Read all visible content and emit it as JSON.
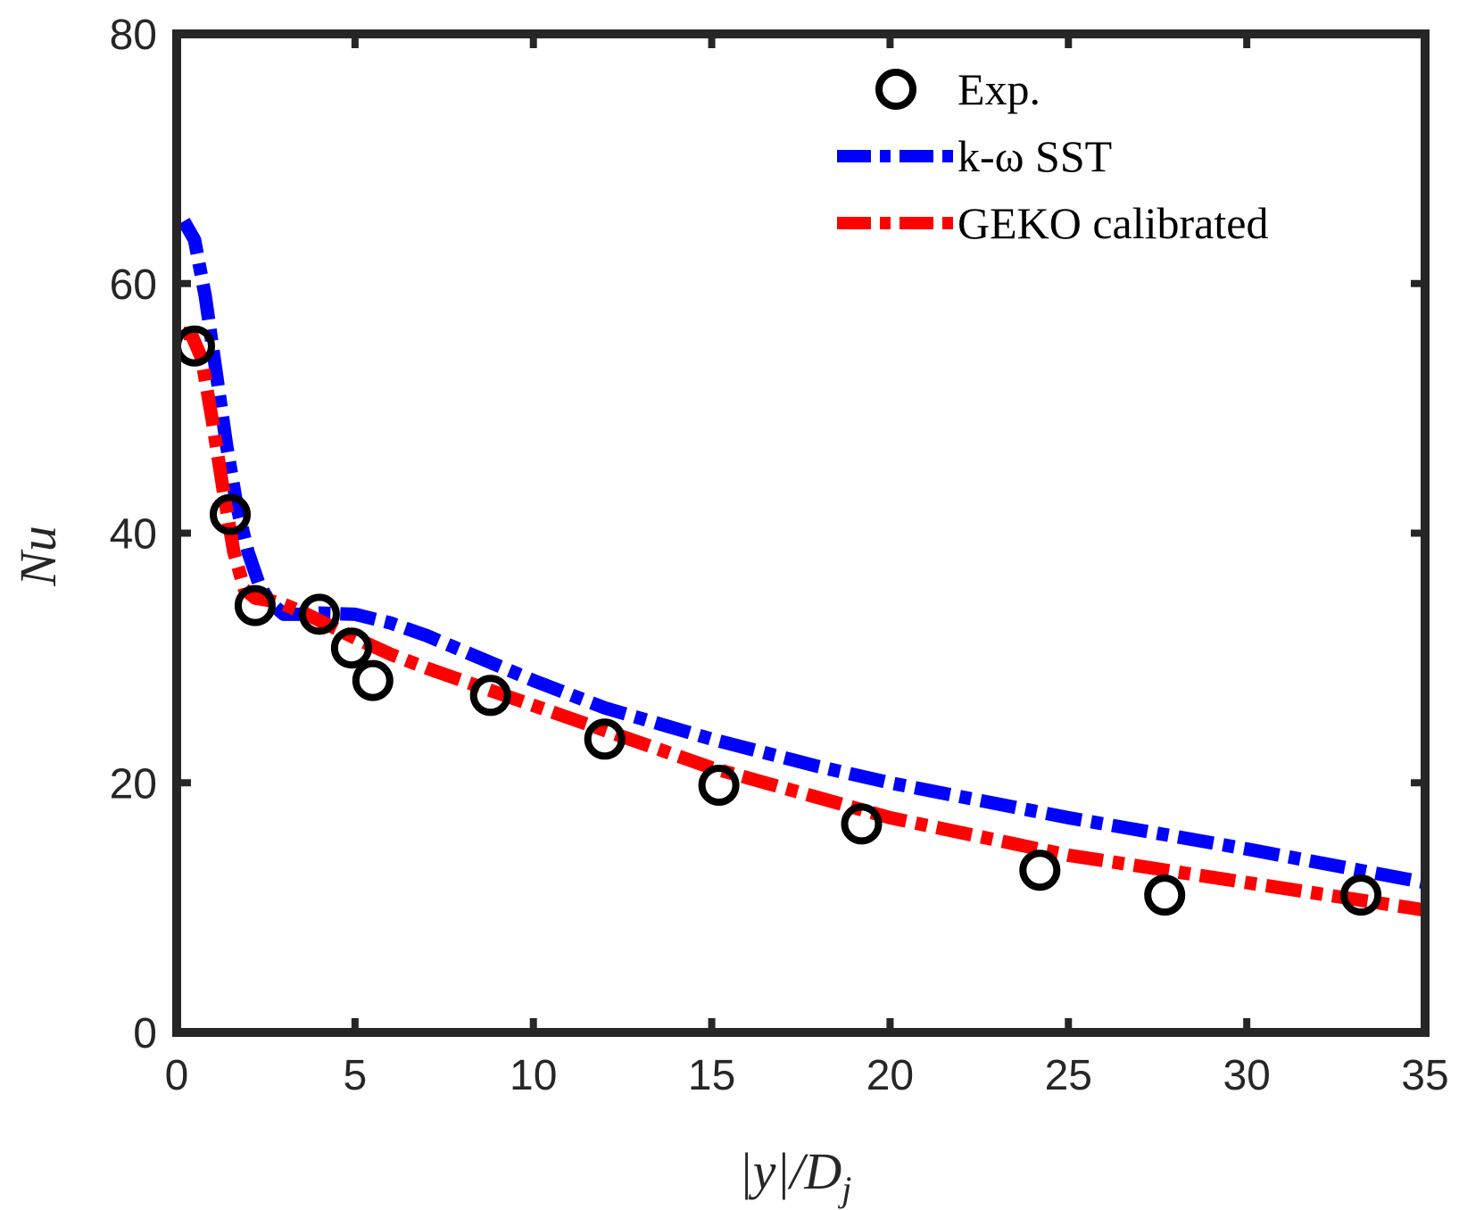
{
  "chart_data": {
    "type": "line",
    "title": "",
    "xlabel": "|y|/D_j",
    "ylabel": "Nu",
    "xlim": [
      0,
      35
    ],
    "ylim": [
      0,
      80
    ],
    "xticks": [
      0,
      5,
      10,
      15,
      20,
      25,
      30,
      35
    ],
    "yticks": [
      0,
      20,
      40,
      60,
      80
    ],
    "xtick_labels": [
      "0",
      "5",
      "10",
      "15",
      "20",
      "25",
      "30",
      "35"
    ],
    "ytick_labels": [
      "0",
      "20",
      "40",
      "60",
      "80"
    ],
    "grid": false,
    "legend_position": "top-right",
    "series": [
      {
        "name": "Exp.",
        "style": "markers",
        "marker": "circle",
        "color": "#000000",
        "x": [
          0.5,
          1.5,
          2.2,
          4.0,
          4.9,
          5.5,
          8.8,
          12.0,
          15.2,
          19.2,
          24.2,
          27.7,
          33.2
        ],
        "y": [
          55.0,
          41.5,
          34.2,
          33.5,
          30.8,
          28.2,
          27.0,
          23.5,
          19.8,
          16.7,
          13.0,
          11.0,
          11.0
        ]
      },
      {
        "name": "k-ω SST",
        "style": "dashdot",
        "color": "#0000ff",
        "x": [
          0.2,
          0.5,
          0.8,
          1.1,
          1.4,
          1.7,
          2.0,
          2.3,
          2.6,
          3.0,
          3.5,
          4.0,
          5.0,
          6.0,
          7.0,
          8.0,
          10.0,
          12.0,
          15.0,
          18.0,
          20.0,
          25.0,
          30.0,
          35.0
        ],
        "y": [
          65.0,
          63.5,
          59.0,
          53.0,
          47.0,
          42.0,
          38.5,
          36.0,
          34.5,
          33.5,
          33.5,
          33.6,
          33.5,
          32.8,
          31.8,
          30.6,
          28.2,
          26.0,
          23.5,
          21.3,
          20.0,
          17.2,
          14.7,
          12.0
        ]
      },
      {
        "name": "GEKO calibrated",
        "style": "dashdot",
        "color": "#ff0000",
        "x": [
          0.2,
          0.4,
          0.7,
          1.0,
          1.3,
          1.6,
          1.9,
          2.2,
          2.6,
          3.0,
          3.5,
          4.0,
          5.0,
          6.0,
          7.0,
          8.0,
          10.0,
          12.0,
          15.0,
          18.0,
          20.0,
          25.0,
          30.0,
          35.0
        ],
        "y": [
          56.0,
          56.0,
          54.0,
          49.0,
          43.5,
          38.5,
          35.5,
          34.8,
          34.6,
          34.3,
          33.7,
          33.0,
          31.6,
          30.3,
          29.2,
          28.2,
          26.2,
          24.2,
          21.2,
          18.8,
          17.2,
          14.2,
          12.0,
          9.8
        ]
      }
    ]
  },
  "legend": {
    "items": [
      {
        "label": "Exp.",
        "symbol": "circle",
        "color": "#000000"
      },
      {
        "label": "k-ω SST",
        "symbol": "dashdot",
        "color": "#0000ff"
      },
      {
        "label": "GEKO calibrated",
        "symbol": "dashdot",
        "color": "#ff0000"
      }
    ]
  },
  "axes": {
    "xlabel": "|y|/D_j",
    "ylabel": "Nu"
  }
}
